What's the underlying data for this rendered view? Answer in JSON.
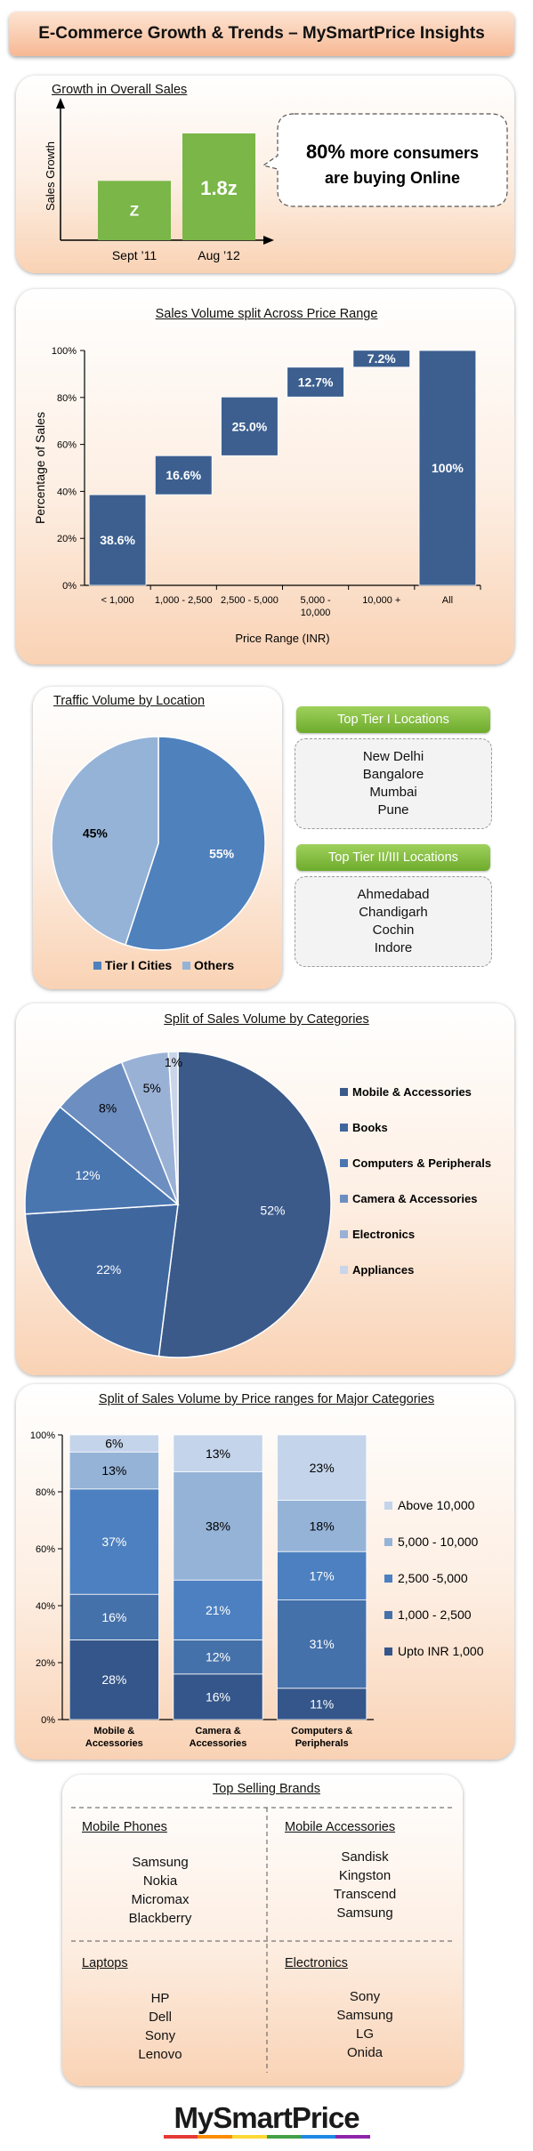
{
  "header": {
    "title": "E-Commerce Growth & Trends – MySmartPrice Insights"
  },
  "colors": {
    "bar_green": "#7ab648",
    "dark_blue": "#3c5f8f",
    "mid_blue": "#4f81bd",
    "light_blue": "#95b3d7",
    "tier_green": "#7bbf3a"
  },
  "growth": {
    "title": "Growth in Overall Sales",
    "callout_highlight": "80%",
    "callout_rest": " more consumers",
    "callout_line2": "are buying Online",
    "chart_data": {
      "type": "bar",
      "categories": [
        "Sept ’11",
        "Aug ’12"
      ],
      "value_labels": [
        "Z",
        "1.8z"
      ],
      "values": [
        1,
        1.8
      ],
      "ylabel": "Sales Growth"
    }
  },
  "waterfall": {
    "title": "Sales Volume split Across Price Range",
    "chart_data": {
      "type": "bar",
      "subtype": "waterfall",
      "categories": [
        "< 1,000",
        "1,000 - 2,500",
        "2,500 - 5,000",
        "5,000 - 10,000",
        "10,000 +",
        "All"
      ],
      "values": [
        38.6,
        16.6,
        25.0,
        12.7,
        7.2,
        100
      ],
      "data_labels": [
        "38.6%",
        "16.6%",
        "25.0%",
        "12.7%",
        "7.2%",
        "100%"
      ],
      "ylim": [
        0,
        100
      ],
      "yticks": [
        "0%",
        "20%",
        "40%",
        "60%",
        "80%",
        "100%"
      ],
      "ylabel": "Percentage of Sales",
      "xlabel": "Price Range (INR)"
    }
  },
  "traffic": {
    "title": "Traffic Volume by Location",
    "chart_data": {
      "type": "pie",
      "labels": [
        "Tier I Cities",
        "Others"
      ],
      "values": [
        55,
        45
      ],
      "data_labels": [
        "55%",
        "45%"
      ],
      "legend": "bottom"
    },
    "tier1": {
      "title": "Top Tier I Locations",
      "items": [
        "New Delhi",
        "Bangalore",
        "Mumbai",
        "Pune"
      ]
    },
    "tier2": {
      "title": "Top Tier II/III Locations",
      "items": [
        "Ahmedabad",
        "Chandigarh",
        "Cochin",
        "Indore"
      ]
    }
  },
  "categories_split": {
    "title": "Split of Sales Volume by Categories",
    "chart_data": {
      "type": "pie",
      "labels": [
        "Mobile & Accessories",
        "Books",
        "Computers & Peripherals",
        "Camera & Accessories",
        "Electronics",
        "Appliances"
      ],
      "values": [
        52,
        22,
        12,
        8,
        5,
        1
      ],
      "data_labels": [
        "52%",
        "22%",
        "12%",
        "8%",
        "5%",
        "1%"
      ],
      "legend": "right"
    }
  },
  "price_by_category": {
    "title": "Split of Sales Volume by Price ranges for Major Categories",
    "chart_data": {
      "type": "bar",
      "subtype": "stacked-100",
      "categories": [
        "Mobile & Accessories",
        "Camera & Accessories",
        "Computers & Peripherals"
      ],
      "category_lines": [
        [
          "Mobile &",
          "Accessories"
        ],
        [
          "Camera &",
          "Accessories"
        ],
        [
          "Computers &",
          "Peripherals"
        ]
      ],
      "series": [
        {
          "name": "Upto INR 1,000",
          "values": [
            28,
            16,
            11
          ]
        },
        {
          "name": "1,000 - 2,500",
          "values": [
            16,
            12,
            31
          ]
        },
        {
          "name": "2,500 -5,000",
          "values": [
            37,
            21,
            17
          ]
        },
        {
          "name": "5,000 - 10,000",
          "values": [
            13,
            38,
            18
          ]
        },
        {
          "name": "Above 10,000",
          "values": [
            6,
            13,
            23
          ]
        }
      ],
      "ylim": [
        0,
        100
      ],
      "yticks": [
        "0%",
        "20%",
        "40%",
        "60%",
        "80%",
        "100%"
      ],
      "legend": "right"
    }
  },
  "brands": {
    "title": "Top Selling Brands",
    "groups": [
      {
        "title": "Mobile Phones",
        "items": [
          "Samsung",
          "Nokia",
          "Micromax",
          "Blackberry"
        ]
      },
      {
        "title": "Mobile Accessories",
        "items": [
          "Sandisk",
          "Kingston",
          "Transcend",
          "Samsung"
        ]
      },
      {
        "title": "Laptops",
        "items": [
          "HP",
          "Dell",
          "Sony",
          "Lenovo"
        ]
      },
      {
        "title": "Electronics",
        "items": [
          "Sony",
          "Samsung",
          "LG",
          "Onida"
        ]
      }
    ]
  },
  "footer": {
    "logo_text": "MySmartPrice"
  }
}
